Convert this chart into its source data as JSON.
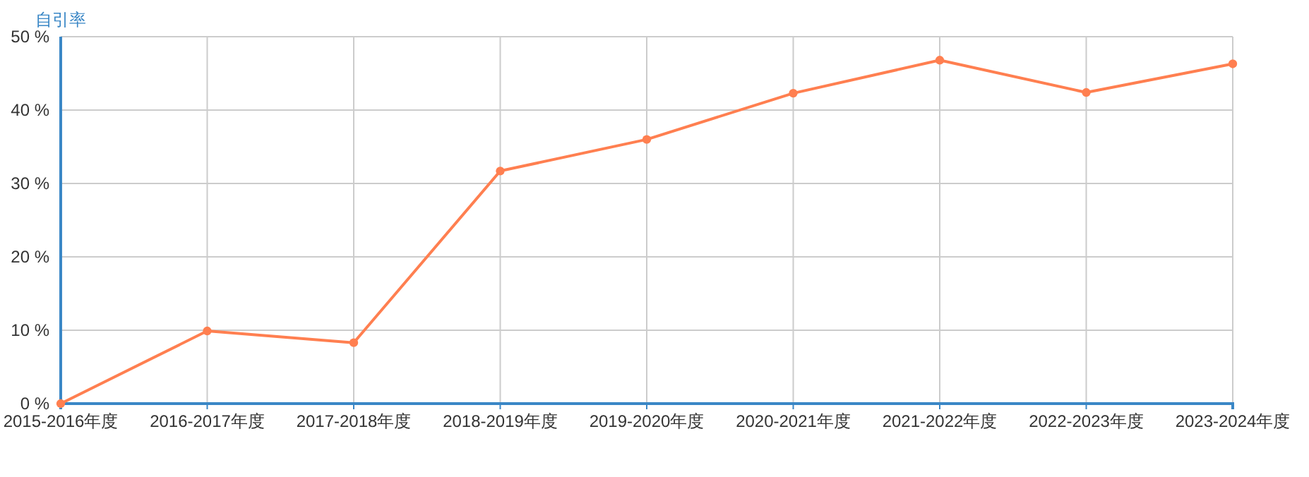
{
  "chart_data": {
    "type": "line",
    "ylabel": "自引率",
    "categories": [
      "2015-2016年度",
      "2016-2017年度",
      "2017-2018年度",
      "2018-2019年度",
      "2019-2020年度",
      "2020-2021年度",
      "2021-2022年度",
      "2022-2023年度",
      "2023-2024年度"
    ],
    "series": [
      {
        "color": "#ff7f50",
        "values": [
          0,
          9.9,
          8.3,
          31.7,
          36.0,
          42.3,
          46.8,
          42.4,
          46.3
        ]
      }
    ],
    "ylim": [
      0,
      50
    ],
    "yticks": [
      {
        "value": 0,
        "label": "0 %"
      },
      {
        "value": 10,
        "label": "10 %"
      },
      {
        "value": 20,
        "label": "20 %"
      },
      {
        "value": 30,
        "label": "30 %"
      },
      {
        "value": 40,
        "label": "40 %"
      },
      {
        "value": 50,
        "label": "50 %"
      }
    ],
    "grid": true,
    "marker": "circle",
    "line_style": "solid"
  }
}
